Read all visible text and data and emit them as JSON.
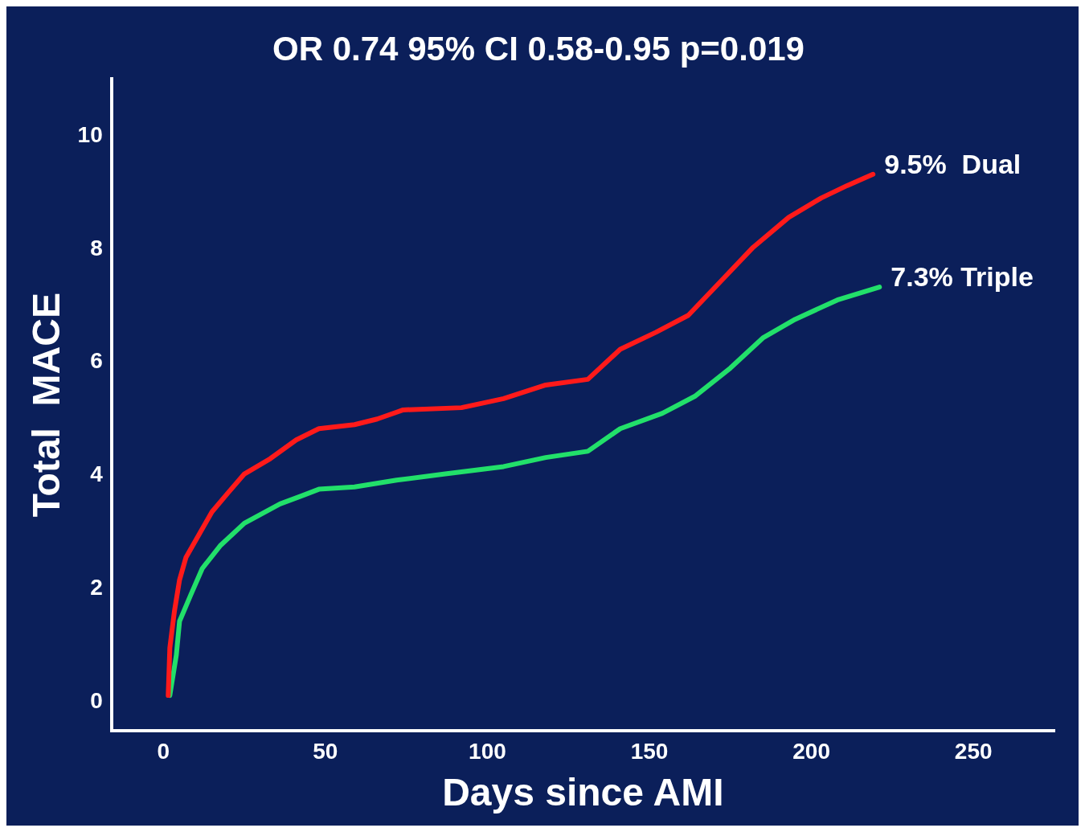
{
  "chart_data": {
    "type": "line",
    "title": "OR 0.74 95% CI 0.58-0.95 p=0.019",
    "xlabel": "Days since AMI",
    "ylabel": "Total  MACE",
    "xlim": [
      -16,
      275
    ],
    "ylim": [
      -0.5,
      11
    ],
    "xticks": [
      0,
      50,
      100,
      150,
      200,
      250
    ],
    "yticks": [
      0,
      2,
      4,
      6,
      8,
      10
    ],
    "grid": false,
    "legend": false,
    "marker": "none",
    "line_style": "solid",
    "series": [
      {
        "name": "9.5%  Dual",
        "color": "#ff1a1a",
        "x": [
          1.5,
          2,
          3.4,
          5,
          7,
          11,
          15,
          20,
          25,
          33,
          41,
          48,
          59,
          66,
          74,
          92,
          105,
          118,
          131,
          141,
          152,
          162,
          172,
          182,
          193,
          203,
          211,
          219
        ],
        "values": [
          0.12,
          0.96,
          1.6,
          2.16,
          2.56,
          2.96,
          3.36,
          3.7,
          4.03,
          4.3,
          4.63,
          4.83,
          4.9,
          5.0,
          5.16,
          5.2,
          5.36,
          5.6,
          5.7,
          6.23,
          6.53,
          6.83,
          7.43,
          8.03,
          8.56,
          8.9,
          9.12,
          9.32
        ]
      },
      {
        "name": "7.3% Triple",
        "color": "#22e06a",
        "x": [
          2,
          4,
          5,
          8.5,
          12,
          17.5,
          25,
          36,
          43,
          48,
          59,
          72,
          87,
          105,
          118,
          131,
          141,
          154,
          164,
          175,
          185,
          195,
          208,
          221
        ],
        "values": [
          0.12,
          0.83,
          1.43,
          1.9,
          2.36,
          2.76,
          3.16,
          3.5,
          3.65,
          3.76,
          3.8,
          3.92,
          4.03,
          4.16,
          4.32,
          4.43,
          4.83,
          5.1,
          5.4,
          5.9,
          6.43,
          6.76,
          7.1,
          7.33
        ]
      }
    ]
  }
}
